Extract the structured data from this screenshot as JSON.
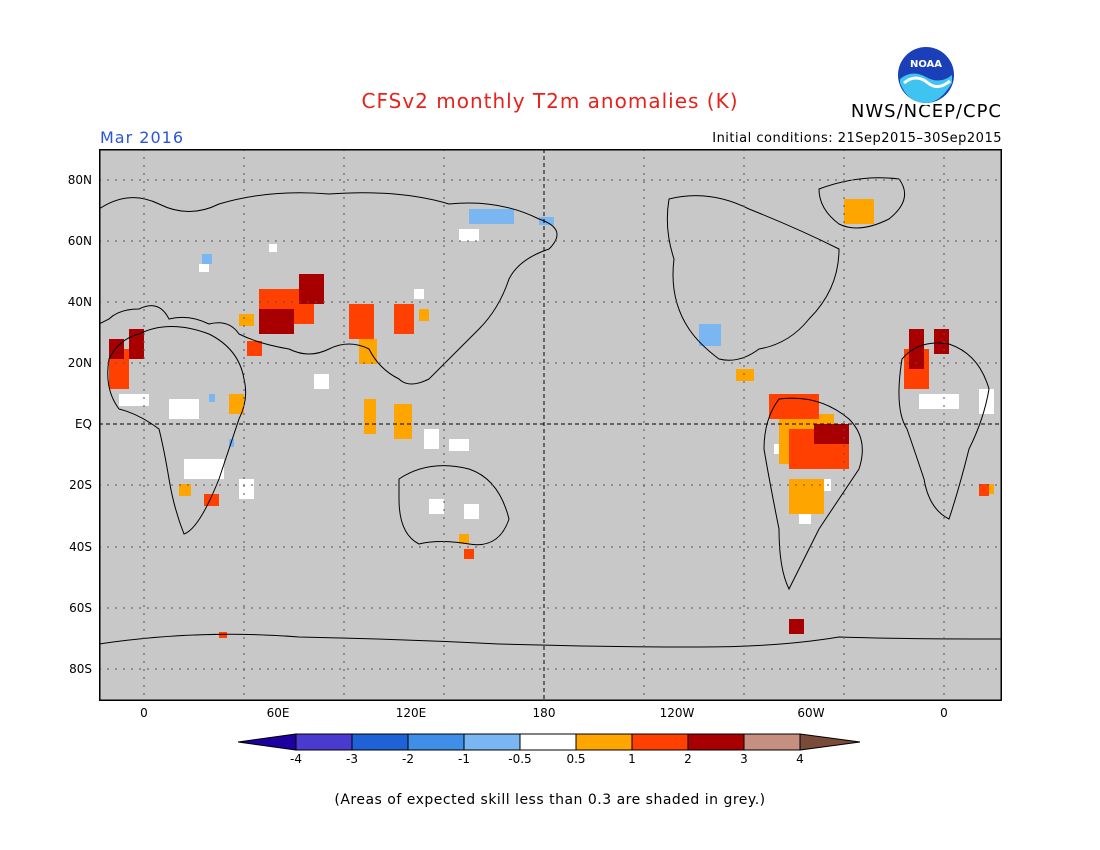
{
  "title": "CFSv2 monthly T2m anomalies (K)",
  "org": "NWS/NCEP/CPC",
  "valid_month": "Mar 2016",
  "initial_conditions": "Initial conditions: 21Sep2015–30Sep2015",
  "note": "(Areas of expected skill less than 0.3 are shaded in grey.)",
  "logo_text": "NOAA",
  "colors": {
    "title": "#e8221b",
    "month": "#2a55d8",
    "map_bg": "#c8c8c8",
    "skill_grey": "#c8c8c8"
  },
  "map": {
    "y_labels": [
      "80N",
      "60N",
      "40N",
      "20N",
      "EQ",
      "20S",
      "40S",
      "60S",
      "80S"
    ],
    "x_labels": [
      "0",
      "60E",
      "120E",
      "180",
      "120W",
      "60W",
      "0"
    ],
    "gridlines": "dotted",
    "reference_lines": [
      "equator",
      "180"
    ]
  },
  "colorbar": {
    "labels": [
      "-4",
      "-3",
      "-2",
      "-1",
      "-0.5",
      "0.5",
      "1",
      "2",
      "3",
      "4"
    ],
    "colors": [
      "#1e00a0",
      "#4a3ad0",
      "#1f62d6",
      "#3f8ee8",
      "#7ab6f2",
      "#ffffff",
      "#ffa500",
      "#ff4000",
      "#a80000",
      "#c59080",
      "#7a4a3a"
    ]
  }
}
